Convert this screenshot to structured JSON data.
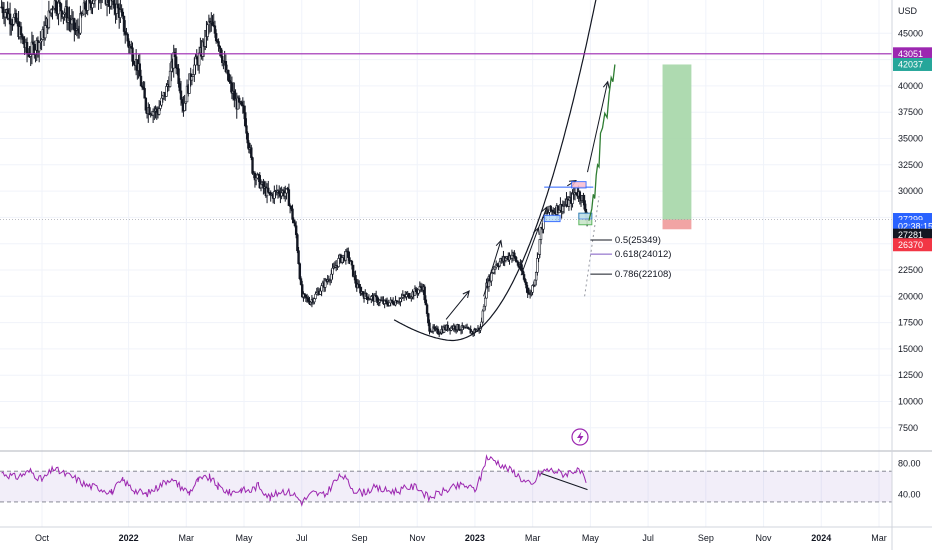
{
  "chart_data": {
    "type": "candlestick",
    "symbol_currency": "USD",
    "price_axis": {
      "min": 5000,
      "max": 47000,
      "ticks": [
        7500,
        10000,
        12500,
        15000,
        17500,
        20000,
        22500,
        25000,
        27500,
        30000,
        32500,
        35000,
        37500,
        40000,
        42500,
        45000
      ]
    },
    "time_axis": {
      "labels": [
        {
          "label": "Oct",
          "t": 0.0
        },
        {
          "label": "2022",
          "t": 3.0
        },
        {
          "label": "Mar",
          "t": 5.0
        },
        {
          "label": "May",
          "t": 7.0
        },
        {
          "label": "Jul",
          "t": 9.0
        },
        {
          "label": "Sep",
          "t": 11.0
        },
        {
          "label": "Nov",
          "t": 13.0
        },
        {
          "label": "2023",
          "t": 15.0
        },
        {
          "label": "Mar",
          "t": 17.0
        },
        {
          "label": "May",
          "t": 19.0
        },
        {
          "label": "Jul",
          "t": 21.0
        },
        {
          "label": "Sep",
          "t": 23.0
        },
        {
          "label": "Nov",
          "t": 25.0
        },
        {
          "label": "2024",
          "t": 27.0
        },
        {
          "label": "Mar",
          "t": 29.0
        }
      ]
    },
    "price_path": [
      [
        -1.4,
        47500
      ],
      [
        -0.9,
        46000
      ],
      [
        -0.5,
        43000
      ],
      [
        0.0,
        44500
      ],
      [
        0.4,
        48000
      ],
      [
        0.8,
        47000
      ],
      [
        1.2,
        45000
      ],
      [
        1.5,
        47500
      ],
      [
        2.0,
        49000
      ],
      [
        2.4,
        48000
      ],
      [
        2.7,
        47000
      ],
      [
        3.0,
        44000
      ],
      [
        3.3,
        42000
      ],
      [
        3.6,
        38000
      ],
      [
        4.0,
        37500
      ],
      [
        4.3,
        39500
      ],
      [
        4.6,
        43000
      ],
      [
        4.9,
        38000
      ],
      [
        5.2,
        41500
      ],
      [
        5.5,
        43000
      ],
      [
        5.8,
        46000
      ],
      [
        6.1,
        44500
      ],
      [
        6.4,
        41000
      ],
      [
        6.7,
        38500
      ],
      [
        7.0,
        37500
      ],
      [
        7.3,
        32000
      ],
      [
        7.6,
        30500
      ],
      [
        7.9,
        29500
      ],
      [
        8.2,
        30000
      ],
      [
        8.5,
        29800
      ],
      [
        8.8,
        26000
      ],
      [
        9.0,
        20000
      ],
      [
        9.3,
        19500
      ],
      [
        9.6,
        20500
      ],
      [
        10.0,
        22000
      ],
      [
        10.3,
        23500
      ],
      [
        10.6,
        24000
      ],
      [
        10.9,
        21000
      ],
      [
        11.2,
        20000
      ],
      [
        11.5,
        19800
      ],
      [
        11.9,
        19300
      ],
      [
        12.2,
        19500
      ],
      [
        12.6,
        20000
      ],
      [
        13.0,
        20500
      ],
      [
        13.2,
        21000
      ],
      [
        13.4,
        17000
      ],
      [
        13.7,
        16600
      ],
      [
        14.0,
        17000
      ],
      [
        14.3,
        17100
      ],
      [
        14.6,
        16900
      ],
      [
        14.9,
        16600
      ],
      [
        15.2,
        17000
      ],
      [
        15.4,
        21000
      ],
      [
        15.7,
        23000
      ],
      [
        16.0,
        23500
      ],
      [
        16.3,
        24000
      ],
      [
        16.6,
        22500
      ],
      [
        16.9,
        20000
      ],
      [
        17.1,
        22000
      ],
      [
        17.3,
        26500
      ],
      [
        17.5,
        28000
      ],
      [
        17.7,
        28200
      ],
      [
        18.0,
        28500
      ],
      [
        18.3,
        29000
      ],
      [
        18.5,
        30000
      ],
      [
        18.7,
        29500
      ],
      [
        18.9,
        27300
      ]
    ],
    "horizontal_line": {
      "price": 43051,
      "label": "43051",
      "color": "#9c27b0"
    },
    "current_price_line": {
      "price": 27299,
      "label": "27299",
      "countdown": "02:38:15"
    },
    "price_badges": [
      {
        "label": "43051",
        "price": 43051,
        "color": "#9c27b0"
      },
      {
        "label": "42037",
        "price": 42037,
        "color": "#26a69a"
      },
      {
        "label": "27299",
        "price": 27299,
        "color": "#2962ff"
      },
      {
        "label": "02:38:15",
        "price": 26650,
        "color": "#2962ff"
      },
      {
        "label": "27281",
        "price": 25810,
        "color": "#131722"
      },
      {
        "label": "26370",
        "price": 24900,
        "color": "#f23645"
      }
    ],
    "fibonacci": [
      {
        "ratio": "0.5",
        "price": "25349",
        "label": "0.5(25349)",
        "color": "#131722",
        "y": 25349
      },
      {
        "ratio": "0.618",
        "price": "24012",
        "label": "0.618(24012)",
        "color": "#7e57c2",
        "y": 24012
      },
      {
        "ratio": "0.786",
        "price": "22108",
        "label": "0.786(22108)",
        "color": "#131722",
        "y": 22108
      }
    ],
    "position": {
      "entry": 27299,
      "target": 42037,
      "stop": 26370,
      "t_start": 21.5,
      "t_end": 22.5,
      "profit_color": "#a5d6a7",
      "loss_color": "#ef9a9a"
    },
    "rsi": {
      "upper": 80,
      "lower": 40,
      "upper_label": "80.00",
      "lower_label": "40.00",
      "min": 25,
      "max": 92,
      "guide_upper": 70,
      "guide_lower": 30,
      "series": [
        [
          -1.4,
          68
        ],
        [
          -0.9,
          62
        ],
        [
          -0.4,
          70
        ],
        [
          0.0,
          58
        ],
        [
          0.4,
          73
        ],
        [
          0.8,
          66
        ],
        [
          1.2,
          60
        ],
        [
          1.5,
          52
        ],
        [
          2.0,
          48
        ],
        [
          2.4,
          43
        ],
        [
          2.8,
          58
        ],
        [
          3.2,
          45
        ],
        [
          3.6,
          40
        ],
        [
          4.0,
          49
        ],
        [
          4.4,
          60
        ],
        [
          4.7,
          53
        ],
        [
          5.1,
          42
        ],
        [
          5.4,
          58
        ],
        [
          5.8,
          62
        ],
        [
          6.1,
          50
        ],
        [
          6.5,
          42
        ],
        [
          6.9,
          46
        ],
        [
          7.2,
          44
        ],
        [
          7.5,
          52
        ],
        [
          7.9,
          35
        ],
        [
          8.3,
          45
        ],
        [
          8.7,
          41
        ],
        [
          9.0,
          30
        ],
        [
          9.4,
          42
        ],
        [
          9.8,
          38
        ],
        [
          10.1,
          55
        ],
        [
          10.4,
          65
        ],
        [
          10.8,
          46
        ],
        [
          11.1,
          42
        ],
        [
          11.5,
          48
        ],
        [
          11.9,
          45
        ],
        [
          12.3,
          44
        ],
        [
          12.7,
          49
        ],
        [
          13.0,
          50
        ],
        [
          13.4,
          35
        ],
        [
          13.8,
          42
        ],
        [
          14.2,
          48
        ],
        [
          14.6,
          52
        ],
        [
          15.0,
          46
        ],
        [
          15.2,
          62
        ],
        [
          15.4,
          88
        ],
        [
          15.7,
          84
        ],
        [
          16.0,
          76
        ],
        [
          16.4,
          68
        ],
        [
          16.7,
          57
        ],
        [
          17.0,
          51
        ],
        [
          17.2,
          66
        ],
        [
          17.5,
          72
        ],
        [
          17.8,
          70
        ],
        [
          18.1,
          66
        ],
        [
          18.4,
          71
        ],
        [
          18.7,
          68
        ],
        [
          18.9,
          45
        ]
      ]
    }
  }
}
